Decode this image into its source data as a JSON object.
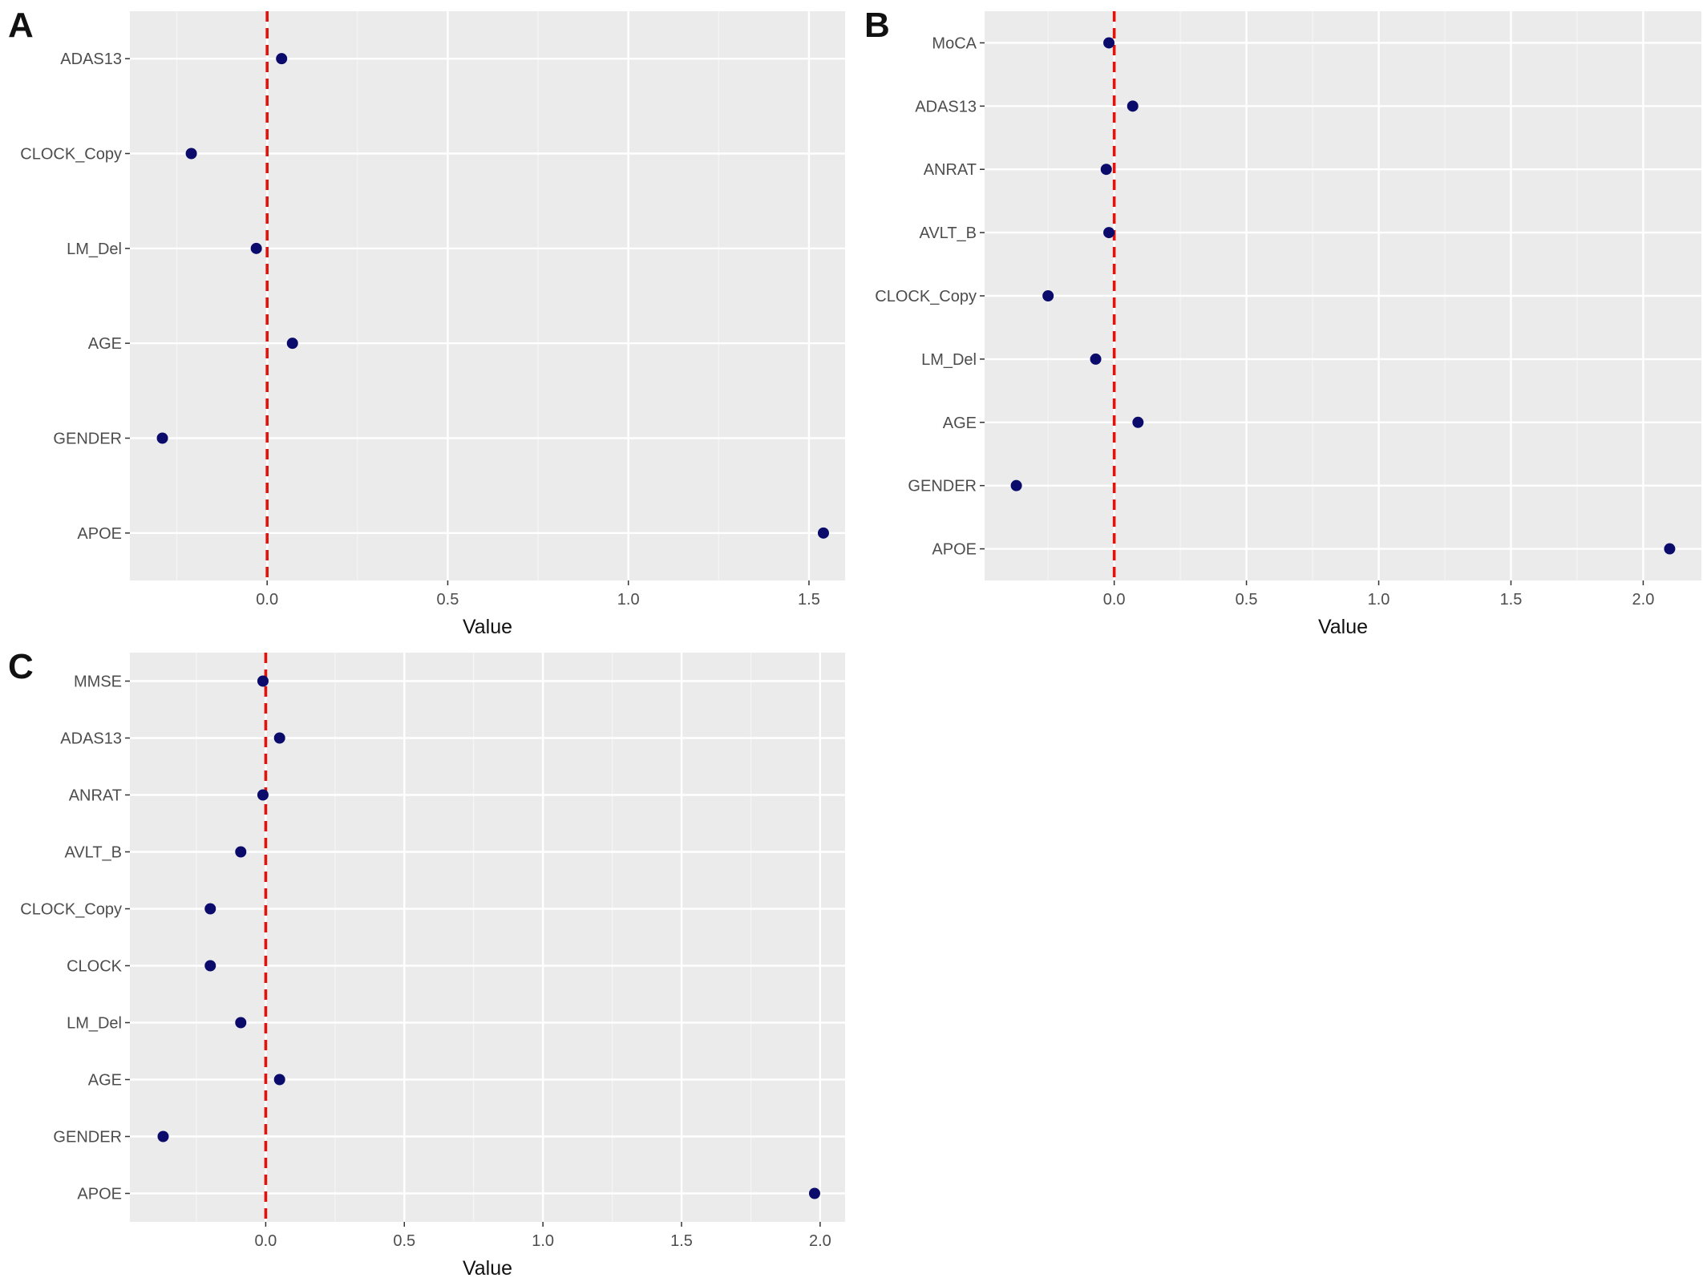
{
  "figure_title": "",
  "colors": {
    "panel_background": "#ebebeb",
    "grid_major": "#ffffff",
    "grid_minor": "#f5f5f5",
    "point": "#0b0b6b",
    "reference_line": "#e3120b",
    "tick_text": "#4d4d4d",
    "tick_mark": "#333333"
  },
  "chart_data": [
    {
      "panel": "A",
      "type": "scatter",
      "title": "",
      "xlabel": "Value",
      "ylabel": "",
      "reference_line_x": 0,
      "reference_line_style": "dashed",
      "grid": true,
      "xlim": [
        -0.38,
        1.6
      ],
      "x_ticks": [
        0,
        0.5,
        1,
        1.5
      ],
      "x_tick_labels": [
        "0.0",
        "0.5",
        "1.0",
        "1.5"
      ],
      "categories": [
        "ADAS13",
        "CLOCK_Copy",
        "LM_Del",
        "AGE",
        "GENDER",
        "APOE"
      ],
      "values": [
        0.04,
        -0.21,
        -0.03,
        0.07,
        -0.29,
        1.54
      ]
    },
    {
      "panel": "B",
      "type": "scatter",
      "title": "",
      "xlabel": "Value",
      "ylabel": "",
      "reference_line_x": 0,
      "reference_line_style": "dashed",
      "grid": true,
      "xlim": [
        -0.49,
        2.22
      ],
      "x_ticks": [
        0,
        0.5,
        1,
        1.5,
        2
      ],
      "x_tick_labels": [
        "0.0",
        "0.5",
        "1.0",
        "1.5",
        "2.0"
      ],
      "categories": [
        "MoCA",
        "ADAS13",
        "ANRAT",
        "AVLT_B",
        "CLOCK_Copy",
        "LM_Del",
        "AGE",
        "GENDER",
        "APOE"
      ],
      "values": [
        -0.02,
        0.07,
        -0.03,
        -0.02,
        -0.25,
        -0.07,
        0.09,
        -0.37,
        2.1
      ]
    },
    {
      "panel": "C",
      "type": "scatter",
      "title": "",
      "xlabel": "Value",
      "ylabel": "",
      "reference_line_x": 0,
      "reference_line_style": "dashed",
      "grid": true,
      "xlim": [
        -0.49,
        2.09
      ],
      "x_ticks": [
        0,
        0.5,
        1,
        1.5,
        2
      ],
      "x_tick_labels": [
        "0.0",
        "0.5",
        "1.0",
        "1.5",
        "2.0"
      ],
      "categories": [
        "MMSE",
        "ADAS13",
        "ANRAT",
        "AVLT_B",
        "CLOCK_Copy",
        "CLOCK",
        "LM_Del",
        "AGE",
        "GENDER",
        "APOE"
      ],
      "values": [
        -0.01,
        0.05,
        -0.01,
        -0.09,
        -0.2,
        -0.2,
        -0.09,
        0.05,
        -0.37,
        1.98
      ]
    }
  ]
}
